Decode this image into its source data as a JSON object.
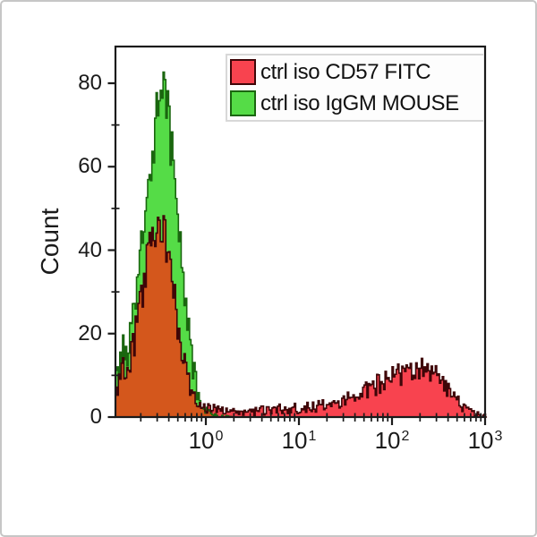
{
  "figure": {
    "background": "#ffffff",
    "outer_border_color": "#c6c6c6",
    "frame_color": "#1b1b1b",
    "text_color": "#1a1a1a"
  },
  "legend": {
    "position": "top-right",
    "border_color": "#d8d8d8",
    "items": [
      {
        "label": "ctrl iso CD57 FITC",
        "swatch_color": "#f8434f",
        "swatch_border": "#3f0608"
      },
      {
        "label": "ctrl iso IgGM MOUSE",
        "swatch_color": "#55dc47",
        "swatch_border": "#1a660f"
      }
    ]
  },
  "chart_data": {
    "type": "area",
    "subtype": "flow-cytometry-histogram-overlay",
    "title": "",
    "xlabel": "",
    "ylabel": "Count",
    "grid": false,
    "x_scale": "log10",
    "x_tick_base": "10",
    "x_major_tick_exponents": [
      0,
      1,
      2,
      3
    ],
    "x_log_range": [
      -0.97,
      3.0
    ],
    "y_range": [
      0,
      88
    ],
    "y_major_ticks": [
      0,
      20,
      40,
      60,
      80
    ],
    "y_minor_ticks": [
      10,
      30,
      50,
      70
    ],
    "legend_position": "top-right",
    "overlap_fill": "#d4571c",
    "noise_factor": 0.95,
    "bin_step_log": 0.015,
    "series": [
      {
        "name": "ctrl iso CD57 FITC",
        "fill": "#f8434f",
        "stroke": "#3f0608",
        "points": [
          [
            -0.97,
            7
          ],
          [
            -0.93,
            8
          ],
          [
            -0.89,
            12
          ],
          [
            -0.85,
            11
          ],
          [
            -0.81,
            15
          ],
          [
            -0.77,
            19
          ],
          [
            -0.73,
            24
          ],
          [
            -0.69,
            29
          ],
          [
            -0.65,
            35
          ],
          [
            -0.61,
            40
          ],
          [
            -0.57,
            43
          ],
          [
            -0.53,
            45
          ],
          [
            -0.49,
            45
          ],
          [
            -0.46,
            43
          ],
          [
            -0.43,
            40
          ],
          [
            -0.39,
            35
          ],
          [
            -0.35,
            29
          ],
          [
            -0.31,
            23
          ],
          [
            -0.27,
            17
          ],
          [
            -0.23,
            12
          ],
          [
            -0.19,
            8
          ],
          [
            -0.14,
            5
          ],
          [
            -0.08,
            3
          ],
          [
            0.0,
            2.2
          ],
          [
            0.15,
            1.6
          ],
          [
            0.35,
            1.4
          ],
          [
            0.55,
            1.5
          ],
          [
            0.75,
            1.8
          ],
          [
            0.95,
            2.0
          ],
          [
            1.15,
            2.4
          ],
          [
            1.3,
            2.8
          ],
          [
            1.45,
            3.5
          ],
          [
            1.6,
            4.8
          ],
          [
            1.72,
            6.2
          ],
          [
            1.82,
            7.8
          ],
          [
            1.92,
            9.2
          ],
          [
            2.0,
            10
          ],
          [
            2.08,
            10.4
          ],
          [
            2.16,
            9.8
          ],
          [
            2.24,
            10.6
          ],
          [
            2.32,
            11.5
          ],
          [
            2.38,
            11.8
          ],
          [
            2.44,
            10
          ],
          [
            2.52,
            8.6
          ],
          [
            2.6,
            6.5
          ],
          [
            2.68,
            4.5
          ],
          [
            2.76,
            2.6
          ],
          [
            2.84,
            1.2
          ],
          [
            2.92,
            0.5
          ],
          [
            3.0,
            0.2
          ]
        ]
      },
      {
        "name": "ctrl iso IgGM MOUSE",
        "fill": "#55dc47",
        "stroke": "#1a660f",
        "points": [
          [
            -0.97,
            11
          ],
          [
            -0.93,
            13
          ],
          [
            -0.89,
            17
          ],
          [
            -0.85,
            16
          ],
          [
            -0.81,
            21
          ],
          [
            -0.77,
            27
          ],
          [
            -0.73,
            34
          ],
          [
            -0.69,
            42
          ],
          [
            -0.65,
            50
          ],
          [
            -0.61,
            58
          ],
          [
            -0.57,
            65
          ],
          [
            -0.53,
            71
          ],
          [
            -0.5,
            75
          ],
          [
            -0.47,
            77
          ],
          [
            -0.44,
            74
          ],
          [
            -0.41,
            70
          ],
          [
            -0.38,
            64
          ],
          [
            -0.35,
            58
          ],
          [
            -0.31,
            49
          ],
          [
            -0.27,
            39
          ],
          [
            -0.23,
            29
          ],
          [
            -0.19,
            20
          ],
          [
            -0.15,
            13
          ],
          [
            -0.11,
            7.5
          ],
          [
            -0.07,
            4
          ],
          [
            -0.02,
            1.8
          ],
          [
            0.03,
            0.8
          ],
          [
            0.1,
            0.3
          ],
          [
            0.2,
            0.1
          ],
          [
            0.3,
            0
          ]
        ]
      }
    ]
  }
}
